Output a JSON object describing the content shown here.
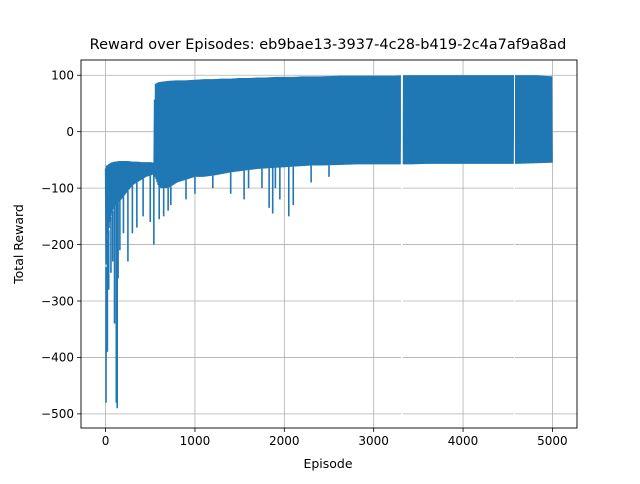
{
  "chart_data": {
    "type": "line",
    "title": "Reward over Episodes: eb9bae13-3937-4c28-b419-2c4a7af9a8ad",
    "xlabel": "Episode",
    "ylabel": "Total Reward",
    "xlim": [
      -275,
      5275
    ],
    "ylim": [
      -525,
      127
    ],
    "xticks": [
      0,
      1000,
      2000,
      3000,
      4000,
      5000
    ],
    "xtick_labels": [
      "0",
      "1000",
      "2000",
      "3000",
      "4000",
      "5000"
    ],
    "yticks": [
      -500,
      -400,
      -300,
      -200,
      -100,
      0,
      100
    ],
    "ytick_labels": [
      "−500",
      "−400",
      "−300",
      "−200",
      "−100",
      "0",
      "100"
    ],
    "grid": true,
    "line_color": "#1f77b4",
    "series": [
      {
        "band_x": [
          0,
          10,
          20,
          30,
          40,
          50,
          60,
          80,
          100,
          120,
          150,
          200,
          250,
          300,
          350,
          400,
          450,
          500,
          540,
          550,
          560,
          600,
          700,
          800,
          900,
          1000,
          1100,
          1200,
          1300,
          1400,
          1500,
          1600,
          1700,
          1800,
          1900,
          2000,
          2100,
          2200,
          2300,
          2400,
          2600,
          2800,
          3000,
          3200,
          3400,
          3600,
          3800,
          4000,
          4200,
          4400,
          4600,
          4800,
          5000
        ],
        "band_upper": [
          -65,
          -60,
          -60,
          -58,
          -57,
          -56,
          -55,
          -54,
          -53,
          -53,
          -52,
          -52,
          -52,
          -53,
          -53,
          -54,
          -54,
          -54,
          -55,
          80,
          85,
          88,
          90,
          91,
          91,
          92,
          93,
          93,
          94,
          94,
          95,
          95,
          96,
          96,
          97,
          97,
          97,
          98,
          98,
          98,
          99,
          99,
          99,
          99,
          100,
          100,
          100,
          100,
          100,
          100,
          100,
          100,
          98
        ],
        "band_lower": [
          -280,
          -200,
          -190,
          -180,
          -170,
          -160,
          -150,
          -140,
          -130,
          -130,
          -125,
          -115,
          -105,
          -95,
          -90,
          -85,
          -80,
          -78,
          -75,
          -80,
          -82,
          -100,
          -100,
          -90,
          -85,
          -80,
          -80,
          -78,
          -75,
          -72,
          -70,
          -68,
          -66,
          -65,
          -64,
          -63,
          -62,
          -61,
          -60,
          -60,
          -59,
          -58,
          -58,
          -58,
          -58,
          -57,
          -57,
          -57,
          -57,
          -57,
          -57,
          -56,
          -55
        ],
        "spikes": [
          [
            5,
            -480
          ],
          [
            20,
            -390
          ],
          [
            35,
            -280
          ],
          [
            60,
            -250
          ],
          [
            80,
            -230
          ],
          [
            100,
            -340
          ],
          [
            120,
            -480
          ],
          [
            130,
            -490
          ],
          [
            140,
            -260
          ],
          [
            160,
            -210
          ],
          [
            200,
            -180
          ],
          [
            250,
            -230
          ],
          [
            300,
            -180
          ],
          [
            350,
            -170
          ],
          [
            420,
            -150
          ],
          [
            500,
            -160
          ],
          [
            540,
            -200
          ],
          [
            600,
            -155
          ],
          [
            650,
            -150
          ],
          [
            700,
            -140
          ],
          [
            730,
            -130
          ],
          [
            900,
            -120
          ],
          [
            1000,
            -110
          ],
          [
            1200,
            -100
          ],
          [
            1400,
            -110
          ],
          [
            1550,
            -120
          ],
          [
            1600,
            -100
          ],
          [
            1750,
            -100
          ],
          [
            1830,
            -135
          ],
          [
            1870,
            -145
          ],
          [
            1900,
            -100
          ],
          [
            1950,
            -120
          ],
          [
            2050,
            -150
          ],
          [
            2100,
            -130
          ],
          [
            2300,
            -90
          ],
          [
            2500,
            -80
          ]
        ],
        "gaps": [
          [
            3305,
            3325
          ],
          [
            4570,
            4575
          ]
        ]
      }
    ]
  }
}
